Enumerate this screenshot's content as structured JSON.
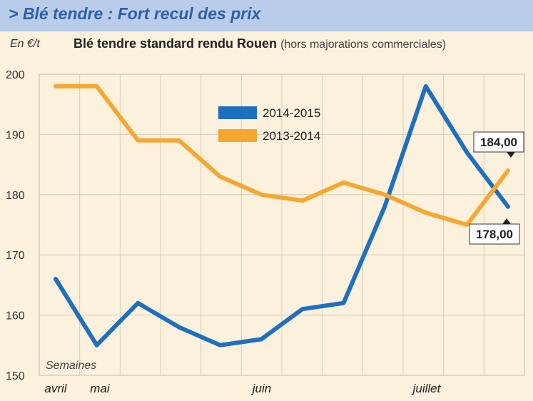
{
  "header": {
    "title": "> Blé tendre : Fort recul des prix"
  },
  "chart_data": {
    "type": "line",
    "title": "Blé tendre standard rendu Rouen",
    "title_note": "(hors majorations commerciales)",
    "ylabel": "En €/t",
    "xlabel": "Semaines",
    "ylim": [
      150,
      200
    ],
    "yticks": [
      150,
      160,
      170,
      180,
      190,
      200
    ],
    "month_labels": [
      "avril",
      "mai",
      "juin",
      "juillet"
    ],
    "grid": true,
    "legend_position": "top-center",
    "series": [
      {
        "name": "2014-2015",
        "color": "#1f6fbf",
        "values": [
          166,
          155,
          162,
          158,
          155,
          156,
          161,
          162,
          178,
          198,
          187,
          178
        ]
      },
      {
        "name": "2013-2014",
        "color": "#f5a733",
        "values": [
          198,
          198,
          189,
          189,
          183,
          180,
          179,
          182,
          180,
          177,
          175,
          184
        ]
      }
    ],
    "annotations": [
      {
        "series": "2013-2014",
        "label": "184,00"
      },
      {
        "series": "2014-2015",
        "label": "178,00"
      }
    ]
  }
}
